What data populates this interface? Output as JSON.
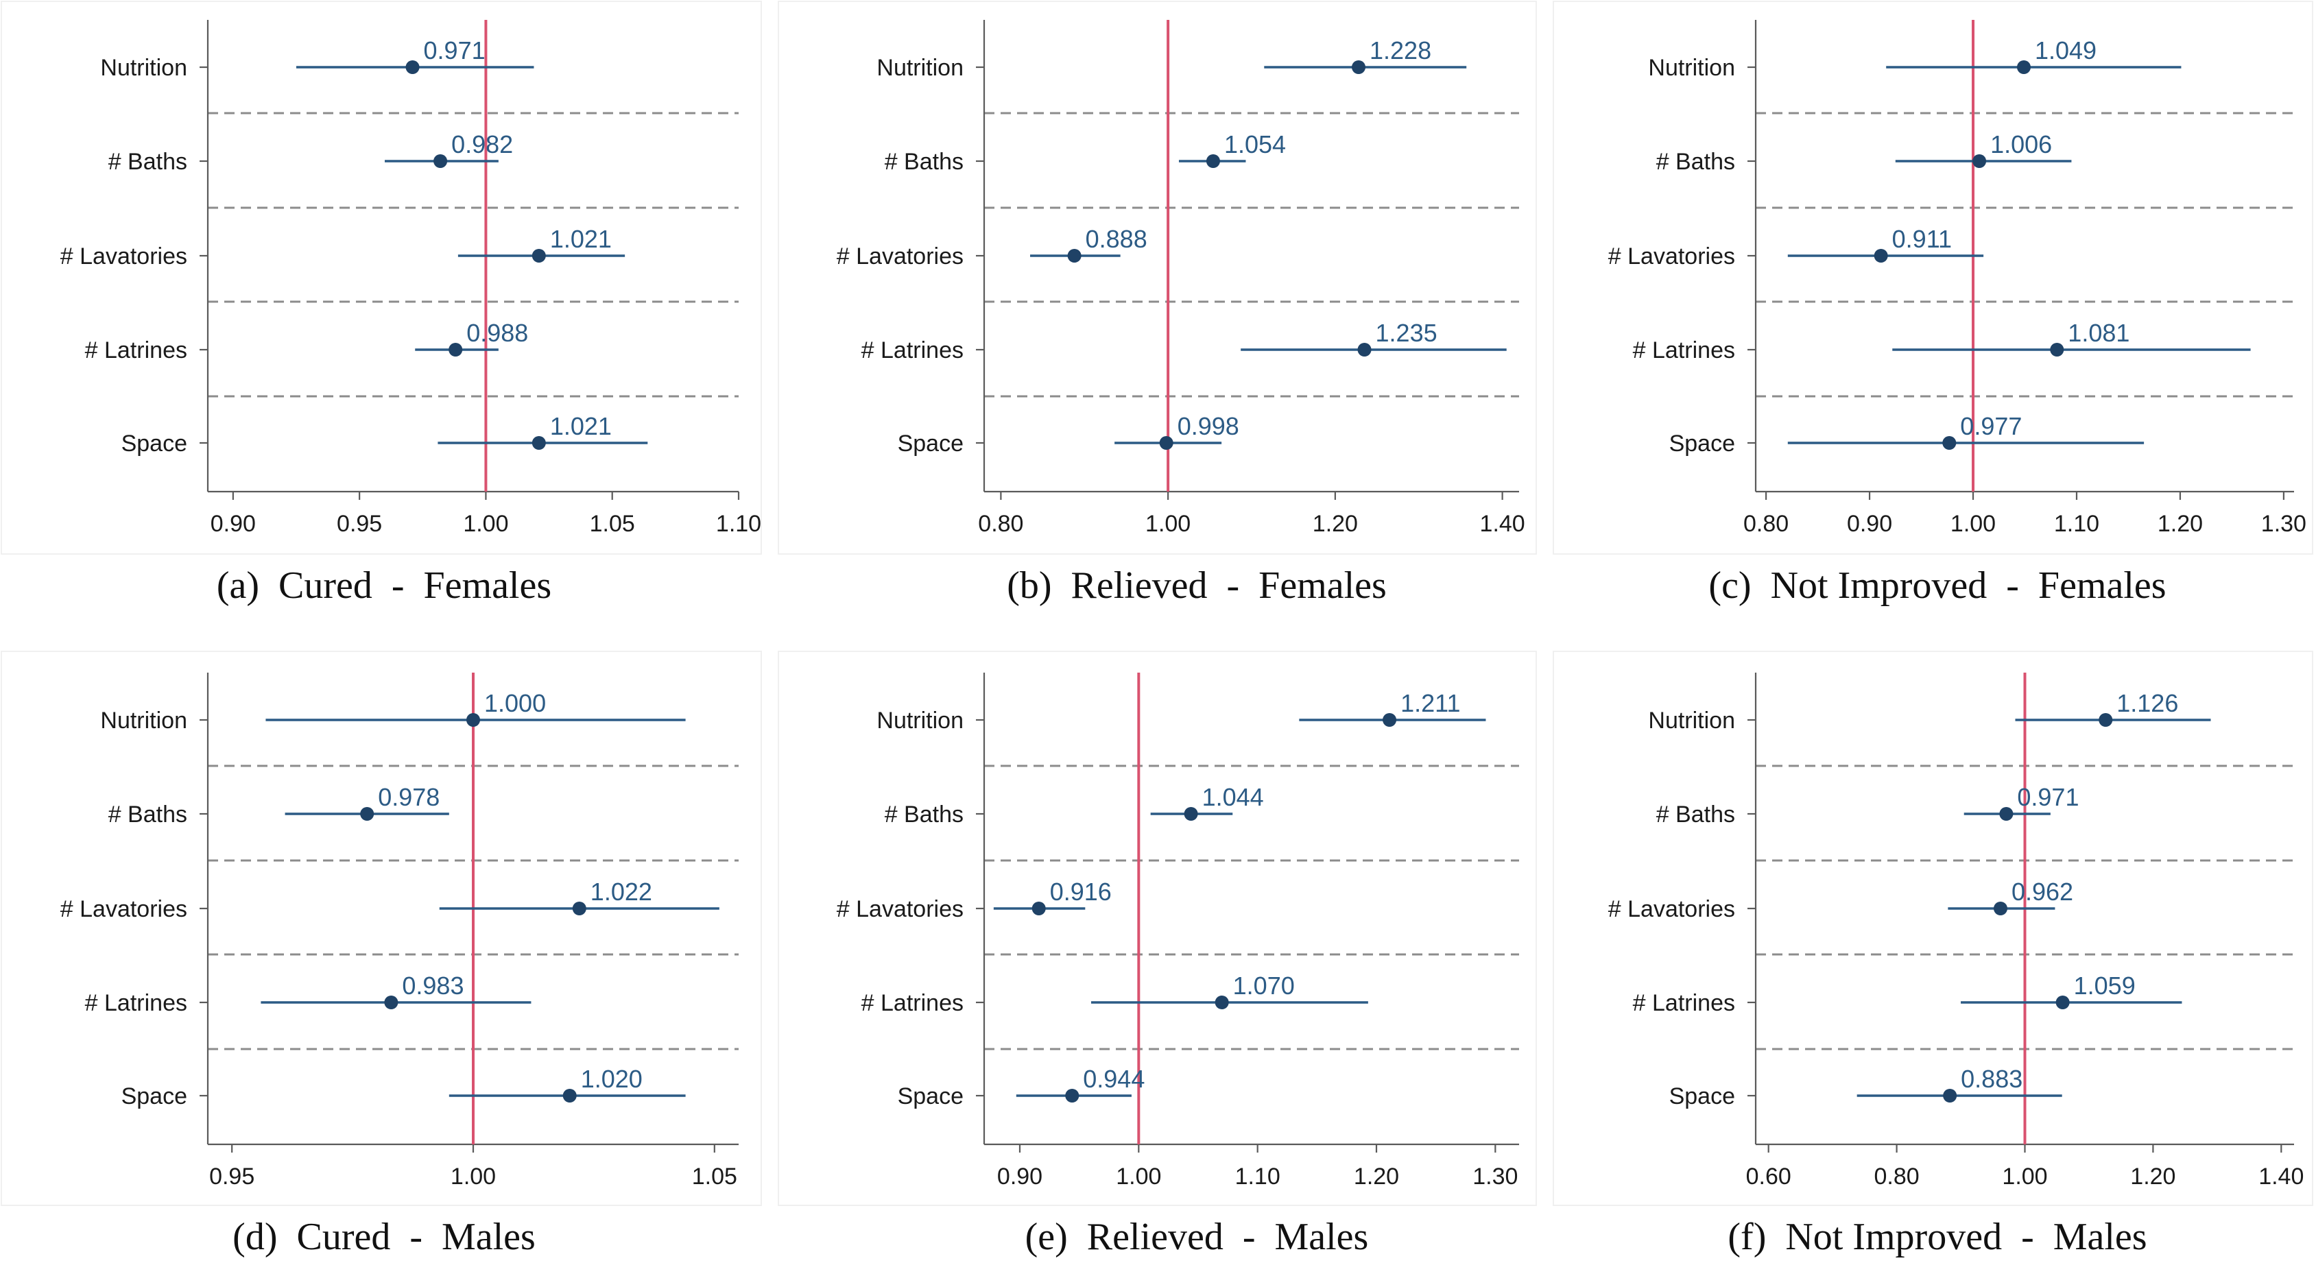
{
  "chart_data": [
    {
      "type": "scatter",
      "panel_letter": "(a)",
      "caption": "Cured - Females",
      "categories": [
        "Nutrition",
        "# Baths",
        "# Lavatories",
        "# Latrines",
        "Space"
      ],
      "estimates": [
        0.971,
        0.982,
        1.021,
        0.988,
        1.021
      ],
      "value_labels": [
        "0.971",
        "0.982",
        "1.021",
        "0.988",
        "1.021"
      ],
      "ci_lower": [
        0.925,
        0.96,
        0.989,
        0.972,
        0.981
      ],
      "ci_upper": [
        1.019,
        1.005,
        1.055,
        1.005,
        1.064
      ],
      "xlim": [
        0.89,
        1.1
      ],
      "xticks": [
        0.9,
        0.95,
        1.0,
        1.05,
        1.1
      ],
      "xtick_labels": [
        "0.90",
        "0.95",
        "1.00",
        "1.05",
        "1.10"
      ],
      "reference_line": 1.0
    },
    {
      "type": "scatter",
      "panel_letter": "(b)",
      "caption": "Relieved - Females",
      "categories": [
        "Nutrition",
        "# Baths",
        "# Lavatories",
        "# Latrines",
        "Space"
      ],
      "estimates": [
        1.228,
        1.054,
        0.888,
        1.235,
        0.998
      ],
      "value_labels": [
        "1.228",
        "1.054",
        "0.888",
        "1.235",
        "0.998"
      ],
      "ci_lower": [
        1.115,
        1.013,
        0.835,
        1.087,
        0.936
      ],
      "ci_upper": [
        1.357,
        1.093,
        0.943,
        1.405,
        1.064
      ],
      "xlim": [
        0.78,
        1.42
      ],
      "xticks": [
        0.8,
        1.0,
        1.2,
        1.4
      ],
      "xtick_labels": [
        "0.80",
        "1.00",
        "1.20",
        "1.40"
      ],
      "reference_line": 1.0
    },
    {
      "type": "scatter",
      "panel_letter": "(c)",
      "caption": "Not Improved - Females",
      "categories": [
        "Nutrition",
        "# Baths",
        "# Lavatories",
        "# Latrines",
        "Space"
      ],
      "estimates": [
        1.049,
        1.006,
        0.911,
        1.081,
        0.977
      ],
      "value_labels": [
        "1.049",
        "1.006",
        "0.911",
        "1.081",
        "0.977"
      ],
      "ci_lower": [
        0.916,
        0.925,
        0.821,
        0.922,
        0.821
      ],
      "ci_upper": [
        1.201,
        1.095,
        1.01,
        1.268,
        1.165
      ],
      "xlim": [
        0.79,
        1.31
      ],
      "xticks": [
        0.8,
        0.9,
        1.0,
        1.1,
        1.2,
        1.3
      ],
      "xtick_labels": [
        "0.80",
        "0.90",
        "1.00",
        "1.10",
        "1.20",
        "1.30"
      ],
      "reference_line": 1.0
    },
    {
      "type": "scatter",
      "panel_letter": "(d)",
      "caption": "Cured - Males",
      "categories": [
        "Nutrition",
        "# Baths",
        "# Lavatories",
        "# Latrines",
        "Space"
      ],
      "estimates": [
        1.0,
        0.978,
        1.022,
        0.983,
        1.02
      ],
      "value_labels": [
        "1.000",
        "0.978",
        "1.022",
        "0.983",
        "1.020"
      ],
      "ci_lower": [
        0.957,
        0.961,
        0.993,
        0.956,
        0.995
      ],
      "ci_upper": [
        1.044,
        0.995,
        1.051,
        1.012,
        1.044
      ],
      "xlim": [
        0.945,
        1.055
      ],
      "xticks": [
        0.95,
        1.0,
        1.05
      ],
      "xtick_labels": [
        "0.95",
        "1.00",
        "1.05"
      ],
      "reference_line": 1.0
    },
    {
      "type": "scatter",
      "panel_letter": "(e)",
      "caption": "Relieved - Males",
      "categories": [
        "Nutrition",
        "# Baths",
        "# Lavatories",
        "# Latrines",
        "Space"
      ],
      "estimates": [
        1.211,
        1.044,
        0.916,
        1.07,
        0.944
      ],
      "value_labels": [
        "1.211",
        "1.044",
        "0.916",
        "1.070",
        "0.944"
      ],
      "ci_lower": [
        1.135,
        1.01,
        0.878,
        0.96,
        0.897
      ],
      "ci_upper": [
        1.292,
        1.079,
        0.955,
        1.193,
        0.994
      ],
      "xlim": [
        0.87,
        1.32
      ],
      "xticks": [
        0.9,
        1.0,
        1.1,
        1.2,
        1.3
      ],
      "xtick_labels": [
        "0.90",
        "1.00",
        "1.10",
        "1.20",
        "1.30"
      ],
      "reference_line": 1.0
    },
    {
      "type": "scatter",
      "panel_letter": "(f)",
      "caption": "Not Improved - Males",
      "categories": [
        "Nutrition",
        "# Baths",
        "# Lavatories",
        "# Latrines",
        "Space"
      ],
      "estimates": [
        1.126,
        0.971,
        0.962,
        1.059,
        0.883
      ],
      "value_labels": [
        "1.126",
        "0.971",
        "0.962",
        "1.059",
        "0.883"
      ],
      "ci_lower": [
        0.985,
        0.905,
        0.88,
        0.9,
        0.738
      ],
      "ci_upper": [
        1.29,
        1.04,
        1.047,
        1.245,
        1.058
      ],
      "xlim": [
        0.58,
        1.42
      ],
      "xticks": [
        0.6,
        0.8,
        1.0,
        1.2,
        1.4
      ],
      "xtick_labels": [
        "0.60",
        "0.80",
        "1.00",
        "1.20",
        "1.40"
      ],
      "reference_line": 1.0
    }
  ],
  "colors": {
    "point": "#1f4266",
    "ci": "#2c5b85",
    "reference_line": "#d9526f",
    "separator": "#8c8c8c",
    "value_label": "#2c5b85"
  }
}
